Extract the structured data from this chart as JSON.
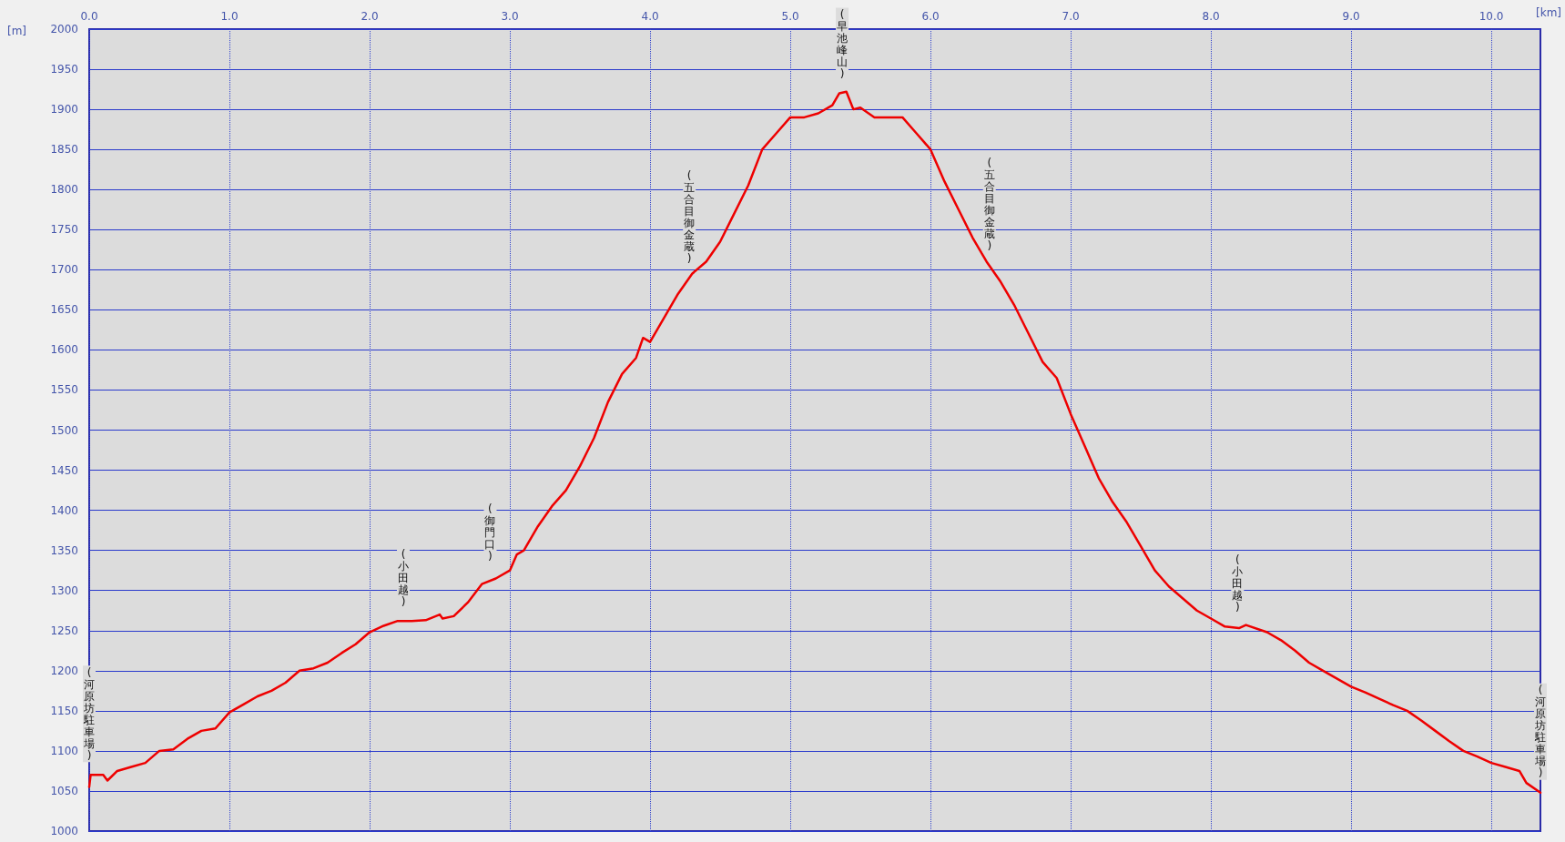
{
  "chart_data": {
    "type": "line",
    "xlabel": "[km]",
    "ylabel": "[m]",
    "x": [
      0,
      0.01,
      0.1,
      0.13,
      0.2,
      0.3,
      0.4,
      0.5,
      0.6,
      0.7,
      0.8,
      0.9,
      1.0,
      1.1,
      1.2,
      1.3,
      1.4,
      1.5,
      1.6,
      1.7,
      1.8,
      1.9,
      2.0,
      2.1,
      2.2,
      2.3,
      2.4,
      2.5,
      2.52,
      2.6,
      2.7,
      2.8,
      2.9,
      3.0,
      3.05,
      3.1,
      3.2,
      3.3,
      3.4,
      3.5,
      3.6,
      3.7,
      3.8,
      3.9,
      3.95,
      4.0,
      4.1,
      4.2,
      4.3,
      4.4,
      4.5,
      4.6,
      4.7,
      4.8,
      4.9,
      5.0,
      5.1,
      5.2,
      5.3,
      5.35,
      5.4,
      5.45,
      5.5,
      5.6,
      5.7,
      5.8,
      5.9,
      6.0,
      6.1,
      6.2,
      6.3,
      6.4,
      6.5,
      6.6,
      6.7,
      6.8,
      6.9,
      7.0,
      7.1,
      7.2,
      7.3,
      7.4,
      7.5,
      7.6,
      7.7,
      7.8,
      7.9,
      8.0,
      8.1,
      8.2,
      8.25,
      8.4,
      8.5,
      8.6,
      8.7,
      8.8,
      8.9,
      9.0,
      9.1,
      9.2,
      9.3,
      9.4,
      9.5,
      9.6,
      9.7,
      9.8,
      9.9,
      10.0,
      10.1,
      10.2,
      10.25,
      10.35
    ],
    "series": [
      {
        "color": "#ee0000",
        "values": [
          1055,
          1070,
          1070,
          1063,
          1075,
          1080,
          1085,
          1100,
          1102,
          1115,
          1125,
          1128,
          1148,
          1158,
          1168,
          1175,
          1185,
          1200,
          1203,
          1210,
          1222,
          1233,
          1248,
          1256,
          1262,
          1262,
          1263,
          1270,
          1265,
          1268,
          1285,
          1308,
          1315,
          1325,
          1345,
          1350,
          1380,
          1405,
          1425,
          1455,
          1490,
          1535,
          1570,
          1590,
          1615,
          1610,
          1640,
          1670,
          1695,
          1710,
          1735,
          1770,
          1805,
          1850,
          1870,
          1890,
          1890,
          1895,
          1905,
          1920,
          1922,
          1900,
          1902,
          1890,
          1890,
          1890,
          1870,
          1850,
          1810,
          1775,
          1740,
          1710,
          1685,
          1655,
          1620,
          1585,
          1565,
          1520,
          1480,
          1440,
          1410,
          1385,
          1355,
          1325,
          1305,
          1290,
          1275,
          1265,
          1255,
          1253,
          1257,
          1248,
          1238,
          1225,
          1210,
          1200,
          1190,
          1180,
          1173,
          1165,
          1157,
          1150,
          1138,
          1125,
          1112,
          1100,
          1093,
          1085,
          1080,
          1075,
          1060,
          1048
        ]
      }
    ],
    "xlim": [
      0,
      10.35
    ],
    "xticks": [
      {
        "value": 0,
        "label": "0.0"
      },
      {
        "value": 1,
        "label": "1.0"
      },
      {
        "value": 2,
        "label": "2.0"
      },
      {
        "value": 3,
        "label": "3.0"
      },
      {
        "value": 4,
        "label": "4.0"
      },
      {
        "value": 5,
        "label": "5.0"
      },
      {
        "value": 6,
        "label": "6.0"
      },
      {
        "value": 7,
        "label": "7.0"
      },
      {
        "value": 8,
        "label": "8.0"
      },
      {
        "value": 9,
        "label": "9.0"
      },
      {
        "value": 10,
        "label": "10.0"
      }
    ],
    "ylim": [
      1000,
      2000
    ],
    "yticks": [
      1000,
      1050,
      1100,
      1150,
      1200,
      1250,
      1300,
      1350,
      1400,
      1450,
      1500,
      1550,
      1600,
      1650,
      1700,
      1750,
      1800,
      1850,
      1900,
      1950,
      2000
    ],
    "grid": true,
    "annotations": [
      {
        "text": "(河原坊駐車場)",
        "x": 0,
        "y": 1070
      },
      {
        "text": "(小田越)",
        "x": 2.24,
        "y": 1262
      },
      {
        "text": "(御門口)",
        "x": 2.86,
        "y": 1318
      },
      {
        "text": "(五合目御金蔵)",
        "x": 4.28,
        "y": 1690
      },
      {
        "text": "(早池峰山)",
        "x": 5.37,
        "y": 1920
      },
      {
        "text": "(五合目御金蔵)",
        "x": 6.42,
        "y": 1705
      },
      {
        "text": "(小田越)",
        "x": 8.19,
        "y": 1255
      },
      {
        "text": "(河原坊駐車場)",
        "x": 10.35,
        "y": 1048
      }
    ]
  }
}
